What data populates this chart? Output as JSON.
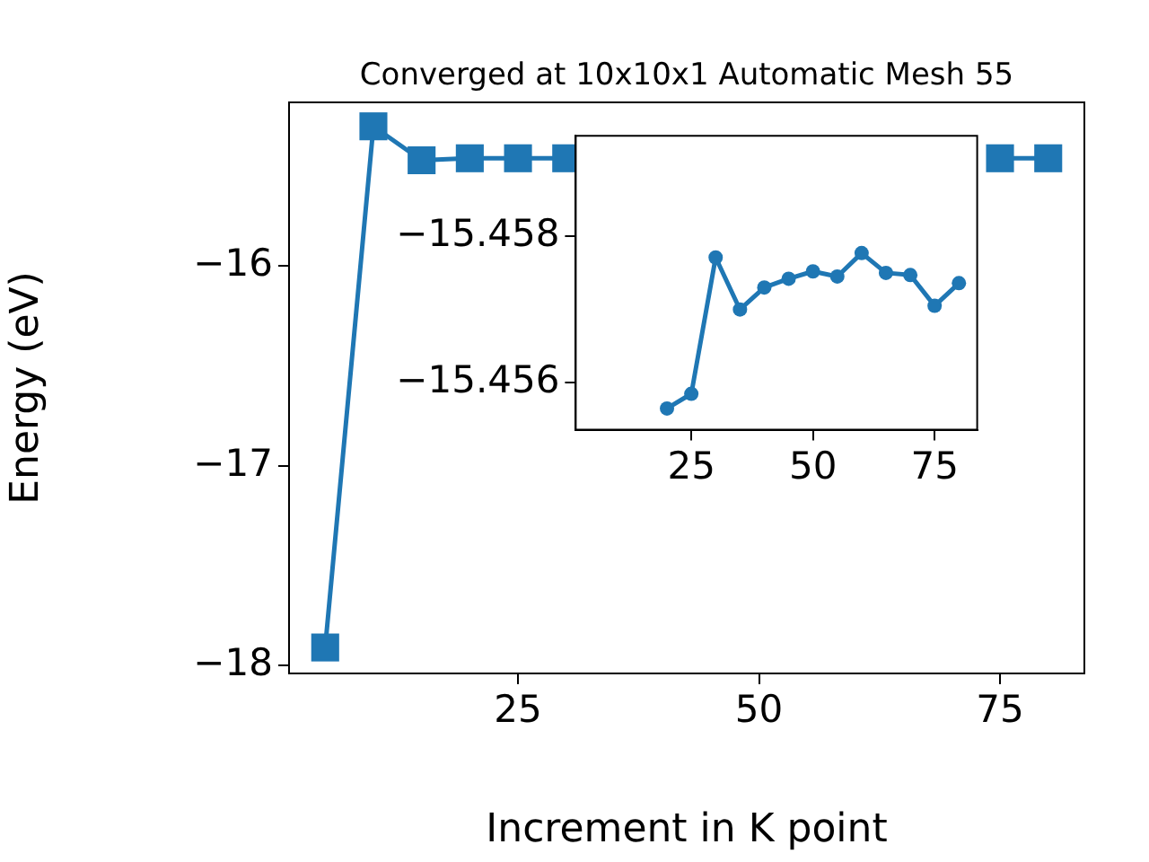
{
  "chart_data": [
    {
      "type": "line",
      "title": "Converged at 10x10x1 Automatic Mesh 55",
      "xlabel": "Increment in K point",
      "ylabel": "Energy (eV)",
      "x": [
        5,
        10,
        15,
        20,
        25,
        30,
        35,
        40,
        45,
        50,
        55,
        60,
        65,
        70,
        75,
        80
      ],
      "series": [
        {
          "color": "#1f77b4",
          "values": [
            -17.91,
            -15.3,
            -15.47,
            -15.46,
            -15.46,
            -15.46,
            null,
            null,
            null,
            null,
            null,
            null,
            null,
            null,
            -15.46,
            -15.46
          ]
        }
      ],
      "xlim": [
        1.25,
        83.75
      ],
      "ylim": [
        -18.04,
        -15.18
      ],
      "xticks": [
        25,
        50,
        75
      ],
      "yticks": [
        -18,
        -17,
        -16
      ],
      "marker": "square",
      "grid": false,
      "legend": false
    },
    {
      "type": "line",
      "x": [
        20,
        25,
        30,
        35,
        40,
        45,
        50,
        55,
        60,
        65,
        70,
        75,
        80
      ],
      "series": [
        {
          "color": "#1f77b4",
          "values": [
            -15.45565,
            -15.45585,
            -15.45771,
            -15.457,
            -15.4573,
            -15.45742,
            -15.45752,
            -15.45745,
            -15.45777,
            -15.4575,
            -15.45747,
            -15.45705,
            -15.45736
          ]
        }
      ],
      "xlim": [
        1.25,
        83.75
      ],
      "ylim": [
        -15.45536,
        -15.45937
      ],
      "xticks": [
        25,
        50,
        75
      ],
      "yticks": [
        -15.458,
        -15.456
      ],
      "marker": "circle",
      "grid": false,
      "legend": false
    }
  ]
}
